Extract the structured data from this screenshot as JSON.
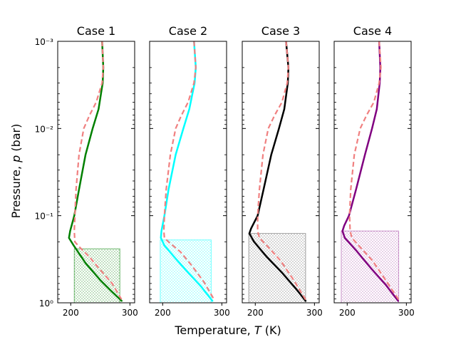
{
  "figure": {
    "xlabel": "Temperature, ",
    "xlabel_var": "T",
    "xlabel_unit": " (K)",
    "ylabel": "Pressure, ",
    "ylabel_var": "p",
    "ylabel_unit": " (bar)"
  },
  "chart_data": [
    {
      "type": "line",
      "title": "Case 1",
      "color": "#008000",
      "xlim": [
        178,
        308
      ],
      "ylim_log10": [
        0,
        -3
      ],
      "x_ticks": [
        200,
        300
      ],
      "y_ticks": [
        {
          "value": 1,
          "label": "10⁰"
        },
        {
          "value": 0.1,
          "label": "10⁻¹"
        },
        {
          "value": 0.01,
          "label": "10⁻²"
        },
        {
          "value": 0.001,
          "label": "10⁻³"
        }
      ],
      "show_y_labels": true,
      "box": {
        "x": [
          206,
          283
        ],
        "p": [
          1.0,
          0.24
        ],
        "color": "#008000"
      },
      "series": [
        {
          "name": "profile",
          "color": "#008000",
          "style": "solid",
          "points": [
            [
              253,
              0.001
            ],
            [
              255,
              0.002
            ],
            [
              254,
              0.003
            ],
            [
              247,
              0.006
            ],
            [
              237,
              0.01
            ],
            [
              225,
              0.02
            ],
            [
              214,
              0.05
            ],
            [
              206,
              0.1
            ],
            [
              199,
              0.15
            ],
            [
              197,
              0.18
            ],
            [
              205,
              0.22
            ],
            [
              225,
              0.35
            ],
            [
              250,
              0.55
            ],
            [
              270,
              0.75
            ],
            [
              286,
              0.95
            ]
          ]
        },
        {
          "name": "reference",
          "color": "#f08080",
          "style": "dashed",
          "points": [
            [
              253,
              0.001
            ],
            [
              255,
              0.002
            ],
            [
              253,
              0.003
            ],
            [
              243,
              0.005
            ],
            [
              232,
              0.007
            ],
            [
              222,
              0.01
            ],
            [
              214,
              0.02
            ],
            [
              209,
              0.05
            ],
            [
              207,
              0.1
            ],
            [
              206,
              0.15
            ],
            [
              207,
              0.2
            ],
            [
              215,
              0.23
            ],
            [
              232,
              0.3
            ],
            [
              250,
              0.42
            ],
            [
              270,
              0.6
            ],
            [
              286,
              0.92
            ]
          ]
        }
      ]
    },
    {
      "type": "line",
      "title": "Case 2",
      "color": "#00ffff",
      "xlim": [
        178,
        308
      ],
      "ylim_log10": [
        0,
        -3
      ],
      "x_ticks": [
        200,
        300
      ],
      "y_ticks": [
        {
          "value": 1,
          "label": ""
        },
        {
          "value": 0.1,
          "label": ""
        },
        {
          "value": 0.01,
          "label": ""
        },
        {
          "value": 0.001,
          "label": ""
        }
      ],
      "show_y_labels": false,
      "box": {
        "x": [
          196,
          282
        ],
        "p": [
          1.0,
          0.19
        ],
        "color": "#00ffff"
      },
      "series": [
        {
          "name": "profile",
          "color": "#00ffff",
          "style": "solid",
          "points": [
            [
              253,
              0.001
            ],
            [
              256,
              0.002
            ],
            [
              254,
              0.003
            ],
            [
              245,
              0.006
            ],
            [
              235,
              0.01
            ],
            [
              222,
              0.02
            ],
            [
              210,
              0.05
            ],
            [
              203,
              0.1
            ],
            [
              198,
              0.15
            ],
            [
              197,
              0.18
            ],
            [
              203,
              0.22
            ],
            [
              220,
              0.3
            ],
            [
              243,
              0.45
            ],
            [
              265,
              0.65
            ],
            [
              284,
              0.95
            ]
          ]
        },
        {
          "name": "reference",
          "color": "#f08080",
          "style": "dashed",
          "points": [
            [
              253,
              0.001
            ],
            [
              256,
              0.002
            ],
            [
              253,
              0.003
            ],
            [
              243,
              0.005
            ],
            [
              232,
              0.007
            ],
            [
              222,
              0.01
            ],
            [
              213,
              0.02
            ],
            [
              206,
              0.05
            ],
            [
              203,
              0.1
            ],
            [
              202,
              0.15
            ],
            [
              203,
              0.18
            ],
            [
              210,
              0.2
            ],
            [
              230,
              0.26
            ],
            [
              250,
              0.38
            ],
            [
              270,
              0.58
            ],
            [
              287,
              0.92
            ]
          ]
        }
      ]
    },
    {
      "type": "line",
      "title": "Case 3",
      "color": "#000000",
      "xlim": [
        178,
        308
      ],
      "ylim_log10": [
        0,
        -3
      ],
      "x_ticks": [
        200,
        300
      ],
      "y_ticks": [
        {
          "value": 1,
          "label": ""
        },
        {
          "value": 0.1,
          "label": ""
        },
        {
          "value": 0.01,
          "label": ""
        },
        {
          "value": 0.001,
          "label": ""
        }
      ],
      "show_y_labels": false,
      "box": {
        "x": [
          189,
          285
        ],
        "p": [
          1.0,
          0.16
        ],
        "color": "#555555"
      },
      "series": [
        {
          "name": "profile",
          "color": "#000000",
          "style": "solid",
          "points": [
            [
              252,
              0.001
            ],
            [
              256,
              0.002
            ],
            [
              255,
              0.003
            ],
            [
              249,
              0.006
            ],
            [
              240,
              0.01
            ],
            [
              227,
              0.02
            ],
            [
              214,
              0.05
            ],
            [
              204,
              0.1
            ],
            [
              193,
              0.14
            ],
            [
              190,
              0.16
            ],
            [
              198,
              0.2
            ],
            [
              220,
              0.3
            ],
            [
              245,
              0.45
            ],
            [
              268,
              0.68
            ],
            [
              285,
              0.95
            ]
          ]
        },
        {
          "name": "reference",
          "color": "#f08080",
          "style": "dashed",
          "points": [
            [
              252,
              0.001
            ],
            [
              256,
              0.002
            ],
            [
              254,
              0.003
            ],
            [
              245,
              0.005
            ],
            [
              233,
              0.007
            ],
            [
              222,
              0.01
            ],
            [
              213,
              0.02
            ],
            [
              207,
              0.05
            ],
            [
              204,
              0.1
            ],
            [
              204,
              0.15
            ],
            [
              207,
              0.18
            ],
            [
              222,
              0.23
            ],
            [
              243,
              0.33
            ],
            [
              265,
              0.55
            ],
            [
              285,
              0.92
            ]
          ]
        }
      ]
    },
    {
      "type": "line",
      "title": "Case 4",
      "color": "#800080",
      "xlim": [
        178,
        308
      ],
      "ylim_log10": [
        0,
        -3
      ],
      "x_ticks": [
        200,
        300
      ],
      "y_ticks": [
        {
          "value": 1,
          "label": ""
        },
        {
          "value": 0.1,
          "label": ""
        },
        {
          "value": 0.01,
          "label": ""
        },
        {
          "value": 0.001,
          "label": ""
        }
      ],
      "show_y_labels": false,
      "box": {
        "x": [
          190,
          287
        ],
        "p": [
          1.0,
          0.15
        ],
        "color": "#a040a0"
      },
      "series": [
        {
          "name": "profile",
          "color": "#800080",
          "style": "solid",
          "points": [
            [
              254,
              0.001
            ],
            [
              256,
              0.002
            ],
            [
              255,
              0.003
            ],
            [
              250,
              0.006
            ],
            [
              242,
              0.01
            ],
            [
              230,
              0.02
            ],
            [
              215,
              0.05
            ],
            [
              203,
              0.1
            ],
            [
              195,
              0.13
            ],
            [
              192,
              0.15
            ],
            [
              196,
              0.18
            ],
            [
              215,
              0.25
            ],
            [
              240,
              0.4
            ],
            [
              265,
              0.62
            ],
            [
              286,
              0.95
            ]
          ]
        },
        {
          "name": "reference",
          "color": "#f08080",
          "style": "dashed",
          "points": [
            [
              254,
              0.001
            ],
            [
              257,
              0.002
            ],
            [
              254,
              0.003
            ],
            [
              245,
              0.005
            ],
            [
              233,
              0.007
            ],
            [
              222,
              0.01
            ],
            [
              212,
              0.02
            ],
            [
              206,
              0.05
            ],
            [
              204,
              0.1
            ],
            [
              205,
              0.15
            ],
            [
              208,
              0.18
            ],
            [
              222,
              0.23
            ],
            [
              243,
              0.33
            ],
            [
              265,
              0.55
            ],
            [
              287,
              0.92
            ]
          ]
        }
      ]
    }
  ]
}
